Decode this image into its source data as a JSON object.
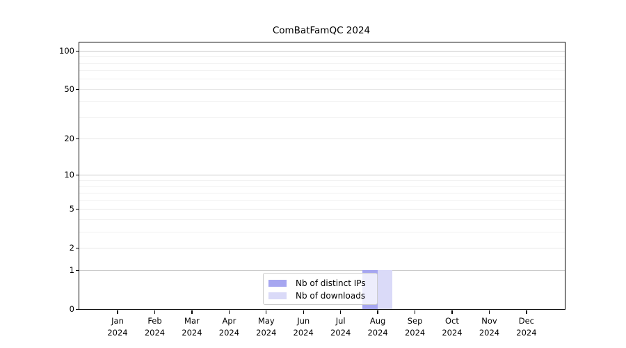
{
  "chart_data": {
    "type": "bar",
    "title": "ComBatFamQC 2024",
    "x_categories": [
      "Jan",
      "Feb",
      "Mar",
      "Apr",
      "May",
      "Jun",
      "Jul",
      "Aug",
      "Sep",
      "Oct",
      "Nov",
      "Dec"
    ],
    "x_year": "2024",
    "series": [
      {
        "name": "Nb of distinct IPs",
        "color": "#a6a6f0",
        "values": [
          0,
          0,
          0,
          0,
          0,
          0,
          0,
          1,
          0,
          0,
          0,
          0
        ]
      },
      {
        "name": "Nb of downloads",
        "color": "#dadaf8",
        "values": [
          0,
          0,
          0,
          0,
          0,
          0,
          0,
          1,
          0,
          0,
          0,
          0
        ]
      }
    ],
    "y_axis": {
      "ticks": [
        0,
        1,
        2,
        5,
        10,
        20,
        50,
        100
      ],
      "scale": "log1p",
      "range": [
        0,
        116
      ],
      "emphasized_gridlines": [
        1,
        10,
        100
      ]
    },
    "grid": "horizontal",
    "legend": {
      "position": "bottom-center"
    }
  },
  "colors": {
    "grid_major": "#c8c8c8",
    "grid_mid": "#e7e7e7",
    "grid_minor": "#f1f1f1",
    "axis": "#000000"
  }
}
